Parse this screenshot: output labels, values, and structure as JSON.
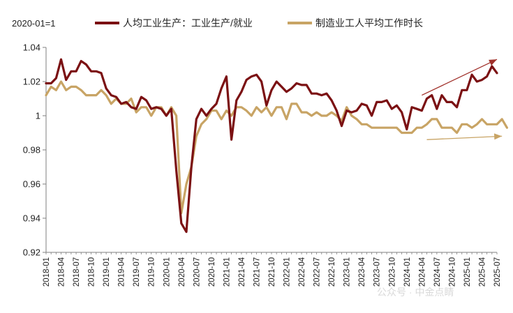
{
  "chart_data": {
    "type": "line",
    "unit_label": "2020-01=1",
    "ylim": [
      0.92,
      1.04
    ],
    "yticks": [
      "0.92",
      "0.94",
      "0.96",
      "0.98",
      "1",
      "1.02",
      "1.04"
    ],
    "ytick_values": [
      0.92,
      0.94,
      0.96,
      0.98,
      1.0,
      1.02,
      1.04
    ],
    "grid": false,
    "legend_position": "top",
    "x_tick_labels": [
      "2018-01",
      "2018-04",
      "2018-07",
      "2018-10",
      "2019-01",
      "2019-04",
      "2019-07",
      "2019-10",
      "2020-01",
      "2020-04",
      "2020-07",
      "2020-10",
      "2021-01",
      "2021-04",
      "2021-07",
      "2021-10",
      "2022-01",
      "2022-04",
      "2022-07",
      "2022-10",
      "2023-01",
      "2023-04",
      "2023-07",
      "2023-10",
      "2024-01",
      "2024-04",
      "2024-07",
      "2024-10",
      "2025-01",
      "2025-04",
      "2025-07"
    ],
    "x_start": "2018-01",
    "series": [
      {
        "name": "人均工业生产：工业生产/就业",
        "color": "#7b1113",
        "values": [
          1.019,
          1.019,
          1.022,
          1.033,
          1.021,
          1.026,
          1.026,
          1.032,
          1.03,
          1.026,
          1.026,
          1.025,
          1.016,
          1.012,
          1.011,
          1.007,
          1.008,
          1.005,
          1.004,
          1.011,
          1.009,
          1.004,
          1.005,
          1.004,
          1.0,
          1.004,
          0.968,
          0.937,
          0.932,
          0.97,
          0.998,
          1.004,
          1.0,
          1.004,
          1.007,
          1.016,
          1.023,
          0.986,
          1.009,
          1.014,
          1.021,
          1.023,
          1.024,
          1.02,
          1.006,
          1.015,
          1.02,
          1.017,
          1.014,
          1.016,
          1.019,
          1.018,
          1.018,
          1.013,
          1.013,
          1.012,
          1.013,
          1.009,
          1.003,
          0.994,
          1.003,
          1.002,
          1.003,
          1.007,
          1.006,
          1.0,
          1.008,
          1.008,
          1.009,
          1.004,
          1.006,
          1.002,
          0.992,
          1.005,
          1.004,
          1.003,
          1.01,
          1.012,
          1.004,
          1.012,
          1.008,
          1.008,
          1.005,
          1.015,
          1.015,
          1.024,
          1.02,
          1.021,
          1.023,
          1.029,
          1.025
        ]
      },
      {
        "name": "制造业工人平均工作时长",
        "color": "#c8a465",
        "values": [
          1.012,
          1.017,
          1.015,
          1.02,
          1.015,
          1.017,
          1.017,
          1.015,
          1.012,
          1.012,
          1.012,
          1.015,
          1.012,
          1.007,
          1.01,
          1.007,
          1.007,
          1.01,
          1.002,
          1.005,
          1.005,
          1.0,
          1.005,
          1.005,
          1.0,
          1.005,
          1.0,
          0.943,
          0.96,
          0.97,
          0.988,
          0.995,
          0.998,
          1.003,
          1.003,
          0.998,
          1.003,
          1.0,
          1.005,
          1.005,
          1.003,
          1.0,
          1.005,
          1.002,
          1.005,
          1.0,
          1.005,
          1.005,
          0.998,
          1.007,
          1.007,
          1.002,
          1.002,
          1.0,
          1.002,
          1.0,
          1.0,
          1.002,
          1.0,
          0.997,
          1.005,
          1.0,
          0.998,
          0.995,
          0.995,
          0.993,
          0.993,
          0.993,
          0.993,
          0.993,
          0.993,
          0.99,
          0.99,
          0.99,
          0.993,
          0.993,
          0.995,
          0.998,
          0.998,
          0.993,
          0.993,
          0.993,
          0.99,
          0.995,
          0.995,
          0.993,
          0.995,
          0.998,
          0.995,
          0.995,
          0.995,
          0.998,
          0.993
        ]
      }
    ],
    "annotations": [
      {
        "type": "arrow",
        "color": "#a0302a",
        "from": [
          "2024-04",
          1.012
        ],
        "to": [
          "2025-07",
          1.033
        ]
      },
      {
        "type": "arrow",
        "color": "#c8a465",
        "from": [
          "2024-05",
          0.986
        ],
        "to": [
          "2025-08",
          0.988
        ]
      }
    ]
  },
  "watermark": "公众号 · 中金点睛"
}
